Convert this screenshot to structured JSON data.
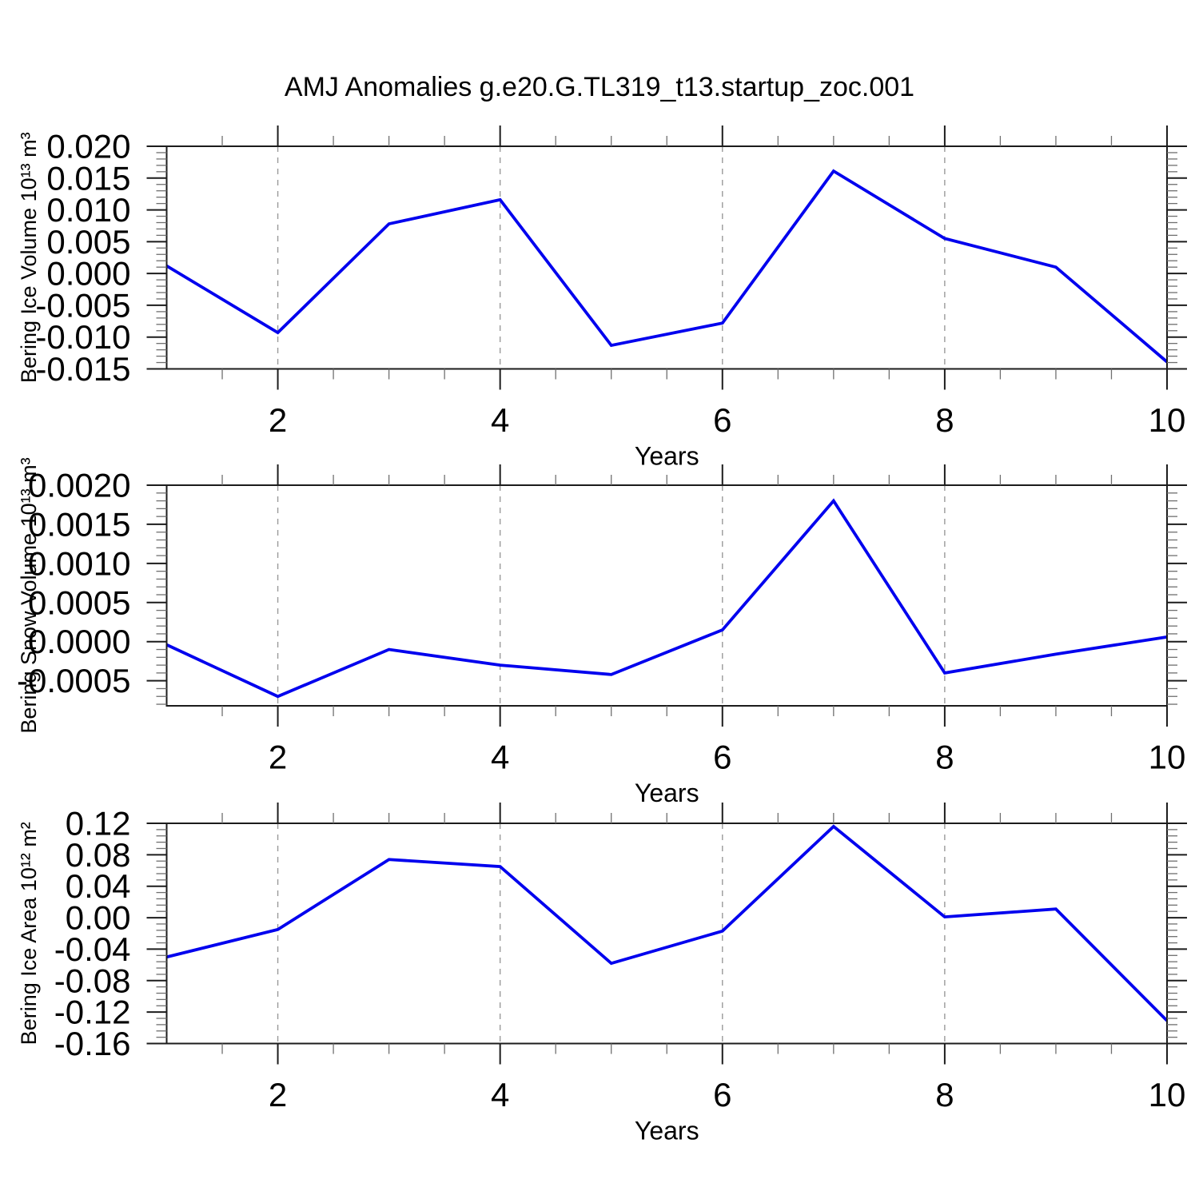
{
  "title": "AMJ Anomalies g.e20.G.TL319_t13.startup_zoc.001",
  "colors": {
    "line": "#0000ee",
    "grid": "#9a9a9a",
    "axis": "#1c1c1c",
    "minor_tick": "#6f6f6f",
    "text": "#000000"
  },
  "chart_data": [
    {
      "type": "line",
      "name": "bering-ice-volume",
      "xlabel": "Years",
      "ylabel": "Bering Ice Volume 10¹³ m³",
      "x": [
        1,
        2,
        3,
        4,
        5,
        6,
        7,
        8,
        9,
        10
      ],
      "values": [
        0.0012,
        -0.0093,
        0.0078,
        0.0116,
        -0.0113,
        -0.0078,
        0.0161,
        0.0055,
        0.001,
        -0.0139
      ],
      "xlim": [
        1,
        10
      ],
      "ylim": [
        -0.015,
        0.02
      ],
      "yticks": [
        0.02,
        0.015,
        0.01,
        0.005,
        0.0,
        -0.005,
        -0.01,
        -0.015
      ],
      "ytick_labels": [
        "0.020",
        "0.015",
        "0.010",
        "0.005",
        "0.000",
        "-0.005",
        "-0.010",
        "-0.015"
      ],
      "y_minor_step": 0.001,
      "xticks": [
        2,
        4,
        6,
        8,
        10
      ],
      "xtick_labels": [
        "2",
        "4",
        "6",
        "8",
        "10"
      ],
      "x_minor_step": 0.5,
      "grid_x": [
        2,
        4,
        6,
        8
      ],
      "grid_on": true,
      "legend": "none"
    },
    {
      "type": "line",
      "name": "bering-snow-volume",
      "xlabel": "Years",
      "ylabel": "Bering Snow Volume 10¹³ m³",
      "x": [
        1,
        2,
        3,
        4,
        5,
        6,
        7,
        8,
        9,
        10
      ],
      "values": [
        -4e-05,
        -0.0007,
        -0.0001,
        -0.0003,
        -0.00042,
        0.00015,
        0.0018,
        -0.0004,
        -0.00016,
        6e-05
      ],
      "xlim": [
        1,
        10
      ],
      "ylim": [
        -0.00082,
        0.002
      ],
      "yticks": [
        0.002,
        0.0015,
        0.001,
        0.0005,
        0.0,
        -0.0005
      ],
      "ytick_labels": [
        "0.0020",
        "0.0015",
        "0.0010",
        "0.0005",
        "0.0000",
        "-0.0005"
      ],
      "y_minor_step": 0.0001,
      "xticks": [
        2,
        4,
        6,
        8,
        10
      ],
      "xtick_labels": [
        "2",
        "4",
        "6",
        "8",
        "10"
      ],
      "x_minor_step": 0.5,
      "grid_x": [
        2,
        4,
        6,
        8
      ],
      "grid_on": true,
      "legend": "none"
    },
    {
      "type": "line",
      "name": "bering-ice-area",
      "xlabel": "Years",
      "ylabel": "Bering Ice Area 10¹² m²",
      "x": [
        1,
        2,
        3,
        4,
        5,
        6,
        7,
        8,
        9,
        10
      ],
      "values": [
        -0.05,
        -0.015,
        0.074,
        0.065,
        -0.058,
        -0.017,
        0.116,
        0.001,
        0.011,
        -0.131
      ],
      "xlim": [
        1,
        10
      ],
      "ylim": [
        -0.16,
        0.12
      ],
      "yticks": [
        0.12,
        0.08,
        0.04,
        0.0,
        -0.04,
        -0.08,
        -0.12,
        -0.16
      ],
      "ytick_labels": [
        "0.12",
        "0.08",
        "0.04",
        "0.00",
        "-0.04",
        "-0.08",
        "-0.12",
        "-0.16"
      ],
      "y_minor_step": 0.008,
      "xticks": [
        2,
        4,
        6,
        8,
        10
      ],
      "xtick_labels": [
        "2",
        "4",
        "6",
        "8",
        "10"
      ],
      "x_minor_step": 0.5,
      "grid_x": [
        2,
        4,
        6,
        8
      ],
      "grid_on": true,
      "legend": "none"
    }
  ]
}
